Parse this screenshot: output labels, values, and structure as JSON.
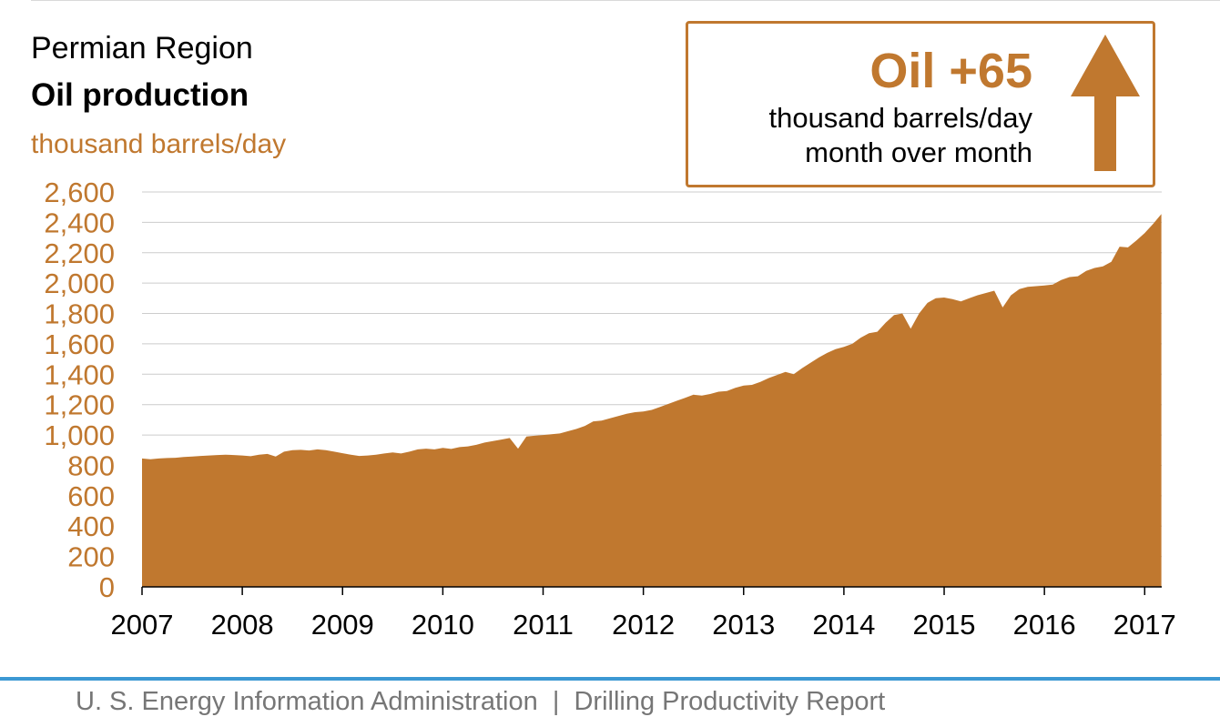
{
  "header": {
    "region": "Permian Region",
    "metric": "Oil production",
    "unit": "thousand barrels/day"
  },
  "callout": {
    "headline": "Oil +65",
    "line1": "thousand barrels/day",
    "line2": "month over month",
    "icon": "up-arrow-icon"
  },
  "footer": {
    "text": "U. S. Energy Information Administration  |  Drilling Productivity Report"
  },
  "colors": {
    "accent": "#c0782f",
    "footer_rule": "#3c98d3",
    "grid": "#cccccc"
  },
  "chart_data": {
    "type": "area",
    "ylim": [
      0,
      2600
    ],
    "yticks": [
      "0",
      "200",
      "400",
      "600",
      "800",
      "1,000",
      "1,200",
      "1,400",
      "1,600",
      "1,800",
      "2,000",
      "2,200",
      "2,400",
      "2,600"
    ],
    "xticks": [
      "2007",
      "2008",
      "2009",
      "2010",
      "2011",
      "2012",
      "2013",
      "2014",
      "2015",
      "2016",
      "2017"
    ],
    "grid": true,
    "series": [
      {
        "points": [
          [
            "2007-01",
            845
          ],
          [
            "2007-02",
            840
          ],
          [
            "2007-03",
            845
          ],
          [
            "2007-04",
            848
          ],
          [
            "2007-05",
            850
          ],
          [
            "2007-06",
            855
          ],
          [
            "2007-07",
            858
          ],
          [
            "2007-08",
            862
          ],
          [
            "2007-09",
            865
          ],
          [
            "2007-10",
            868
          ],
          [
            "2007-11",
            870
          ],
          [
            "2007-12",
            868
          ],
          [
            "2008-01",
            865
          ],
          [
            "2008-02",
            860
          ],
          [
            "2008-03",
            870
          ],
          [
            "2008-04",
            875
          ],
          [
            "2008-05",
            858
          ],
          [
            "2008-06",
            890
          ],
          [
            "2008-07",
            900
          ],
          [
            "2008-08",
            902
          ],
          [
            "2008-09",
            898
          ],
          [
            "2008-10",
            905
          ],
          [
            "2008-11",
            900
          ],
          [
            "2008-12",
            890
          ],
          [
            "2009-01",
            880
          ],
          [
            "2009-02",
            870
          ],
          [
            "2009-03",
            862
          ],
          [
            "2009-04",
            865
          ],
          [
            "2009-05",
            870
          ],
          [
            "2009-06",
            878
          ],
          [
            "2009-07",
            885
          ],
          [
            "2009-08",
            878
          ],
          [
            "2009-09",
            890
          ],
          [
            "2009-10",
            905
          ],
          [
            "2009-11",
            910
          ],
          [
            "2009-12",
            905
          ],
          [
            "2010-01",
            915
          ],
          [
            "2010-02",
            908
          ],
          [
            "2010-03",
            920
          ],
          [
            "2010-04",
            925
          ],
          [
            "2010-05",
            935
          ],
          [
            "2010-06",
            950
          ],
          [
            "2010-07",
            960
          ],
          [
            "2010-08",
            970
          ],
          [
            "2010-09",
            980
          ],
          [
            "2010-10",
            910
          ],
          [
            "2010-11",
            990
          ],
          [
            "2010-12",
            995
          ],
          [
            "2011-01",
            1000
          ],
          [
            "2011-02",
            1005
          ],
          [
            "2011-03",
            1010
          ],
          [
            "2011-04",
            1025
          ],
          [
            "2011-05",
            1040
          ],
          [
            "2011-06",
            1060
          ],
          [
            "2011-07",
            1090
          ],
          [
            "2011-08",
            1095
          ],
          [
            "2011-09",
            1110
          ],
          [
            "2011-10",
            1125
          ],
          [
            "2011-11",
            1140
          ],
          [
            "2011-12",
            1150
          ],
          [
            "2012-01",
            1155
          ],
          [
            "2012-02",
            1165
          ],
          [
            "2012-03",
            1185
          ],
          [
            "2012-04",
            1205
          ],
          [
            "2012-05",
            1225
          ],
          [
            "2012-06",
            1245
          ],
          [
            "2012-07",
            1265
          ],
          [
            "2012-08",
            1260
          ],
          [
            "2012-09",
            1270
          ],
          [
            "2012-10",
            1285
          ],
          [
            "2012-11",
            1290
          ],
          [
            "2012-12",
            1310
          ],
          [
            "2013-01",
            1325
          ],
          [
            "2013-02",
            1330
          ],
          [
            "2013-03",
            1350
          ],
          [
            "2013-04",
            1375
          ],
          [
            "2013-05",
            1395
          ],
          [
            "2013-06",
            1415
          ],
          [
            "2013-07",
            1400
          ],
          [
            "2013-08",
            1440
          ],
          [
            "2013-09",
            1475
          ],
          [
            "2013-10",
            1510
          ],
          [
            "2013-11",
            1540
          ],
          [
            "2013-12",
            1565
          ],
          [
            "2014-01",
            1580
          ],
          [
            "2014-02",
            1600
          ],
          [
            "2014-03",
            1640
          ],
          [
            "2014-04",
            1670
          ],
          [
            "2014-05",
            1680
          ],
          [
            "2014-06",
            1740
          ],
          [
            "2014-07",
            1790
          ],
          [
            "2014-08",
            1800
          ],
          [
            "2014-09",
            1700
          ],
          [
            "2014-10",
            1800
          ],
          [
            "2014-11",
            1870
          ],
          [
            "2014-12",
            1900
          ],
          [
            "2015-01",
            1905
          ],
          [
            "2015-02",
            1895
          ],
          [
            "2015-03",
            1880
          ],
          [
            "2015-04",
            1900
          ],
          [
            "2015-05",
            1920
          ],
          [
            "2015-06",
            1935
          ],
          [
            "2015-07",
            1950
          ],
          [
            "2015-08",
            1840
          ],
          [
            "2015-09",
            1920
          ],
          [
            "2015-10",
            1960
          ],
          [
            "2015-11",
            1975
          ],
          [
            "2015-12",
            1980
          ],
          [
            "2016-01",
            1985
          ],
          [
            "2016-02",
            1990
          ],
          [
            "2016-03",
            2020
          ],
          [
            "2016-04",
            2040
          ],
          [
            "2016-05",
            2045
          ],
          [
            "2016-06",
            2080
          ],
          [
            "2016-07",
            2100
          ],
          [
            "2016-08",
            2110
          ],
          [
            "2016-09",
            2140
          ],
          [
            "2016-10",
            2240
          ],
          [
            "2016-11",
            2235
          ],
          [
            "2016-12",
            2280
          ],
          [
            "2017-01",
            2330
          ],
          [
            "2017-02",
            2390
          ],
          [
            "2017-03",
            2455
          ]
        ]
      }
    ]
  }
}
